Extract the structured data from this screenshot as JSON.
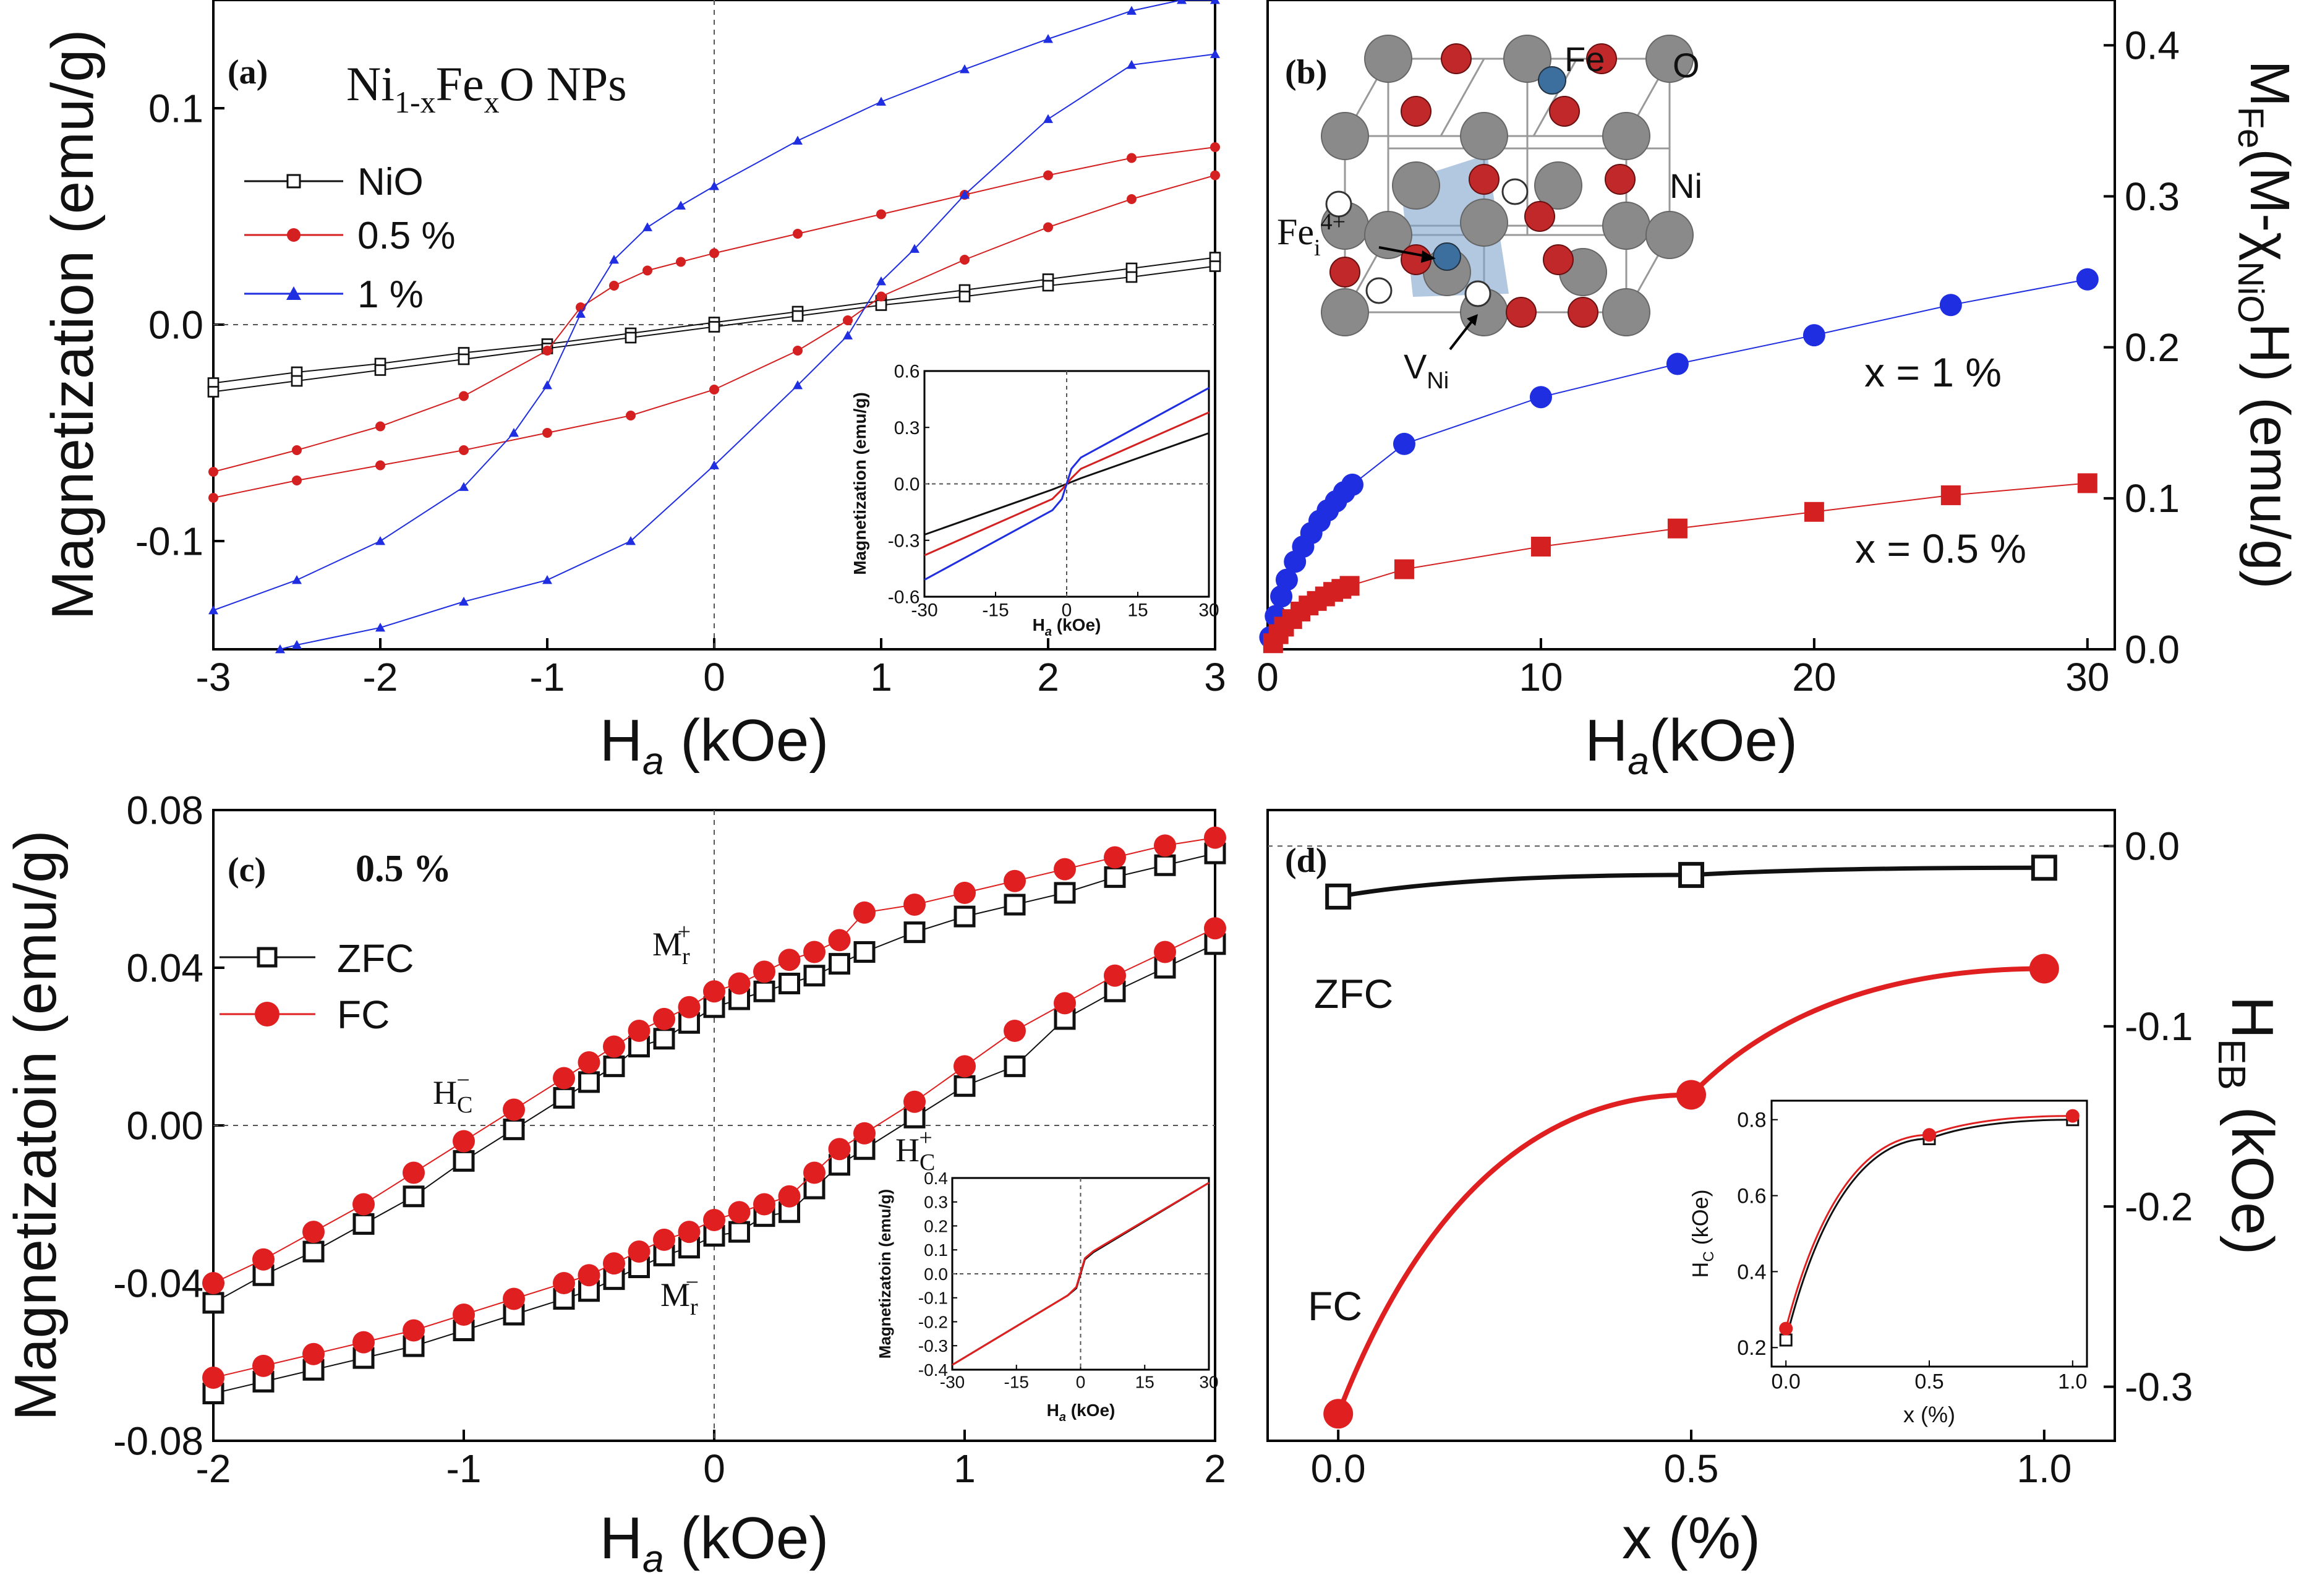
{
  "figure": {
    "panels": [
      "(a)",
      "(b)",
      "(c)",
      "(d)"
    ]
  },
  "chart_data": [
    {
      "panel": "(a)",
      "type": "line",
      "annotation": "Ni1-xFexO NPs",
      "annotation_parts": {
        "base": "Ni",
        "sub1": "1-x",
        "mid": "Fe",
        "sub2": "x",
        "end": "O NPs"
      },
      "xlabel": "Ha (kOe)",
      "xlabel_parts": {
        "base": "H",
        "sub": "a",
        "unit": " (kOe)"
      },
      "ylabel": "Magnetization (emu/g)",
      "xlim": [
        -3,
        3
      ],
      "ylim": [
        -0.15,
        0.15
      ],
      "xticks": [
        -3,
        -2,
        -1,
        0,
        1,
        2,
        3
      ],
      "yticks": [
        -0.1,
        0.0,
        0.1
      ],
      "ytick_labels": [
        "-0.1",
        "0.0",
        "0.1"
      ],
      "legend": [
        "NiO",
        "0.5 %",
        "1 %"
      ],
      "series": [
        {
          "name": "NiO",
          "color": "#111111",
          "marker": "open-square",
          "x_upper": [
            -3.0,
            -2.5,
            -2.0,
            -1.5,
            -1.0,
            -0.5,
            0.0,
            0.5,
            1.0,
            1.5,
            2.0,
            2.5,
            3.0
          ],
          "upper": [
            -0.027,
            -0.022,
            -0.018,
            -0.013,
            -0.009,
            -0.004,
            0.001,
            0.006,
            0.011,
            0.016,
            0.021,
            0.026,
            0.031
          ],
          "x_lower": [
            -3.0,
            -2.5,
            -2.0,
            -1.5,
            -1.0,
            -0.5,
            0.0,
            0.5,
            1.0,
            1.5,
            2.0,
            2.5,
            3.0
          ],
          "lower": [
            -0.031,
            -0.026,
            -0.021,
            -0.016,
            -0.011,
            -0.006,
            -0.001,
            0.004,
            0.009,
            0.013,
            0.018,
            0.022,
            0.027
          ]
        },
        {
          "name": "0.5 %",
          "color": "#d42020",
          "marker": "filled-circle",
          "x_upper": [
            -3.0,
            -2.5,
            -2.0,
            -1.5,
            -1.0,
            -0.8,
            -0.6,
            -0.4,
            -0.2,
            0.0,
            0.5,
            1.0,
            1.5,
            2.0,
            2.5,
            3.0
          ],
          "upper": [
            -0.068,
            -0.058,
            -0.047,
            -0.033,
            -0.012,
            0.008,
            0.018,
            0.025,
            0.029,
            0.033,
            0.042,
            0.051,
            0.06,
            0.069,
            0.077,
            0.082
          ],
          "x_lower": [
            -3.0,
            -2.5,
            -2.0,
            -1.5,
            -1.0,
            -0.5,
            0.0,
            0.5,
            0.8,
            1.0,
            1.5,
            2.0,
            2.5,
            3.0
          ],
          "lower": [
            -0.08,
            -0.072,
            -0.065,
            -0.058,
            -0.05,
            -0.042,
            -0.03,
            -0.012,
            0.002,
            0.013,
            0.03,
            0.045,
            0.058,
            0.069
          ]
        },
        {
          "name": "1 %",
          "color": "#1f2ee0",
          "marker": "filled-triangle",
          "x_upper": [
            -3.0,
            -2.5,
            -2.0,
            -1.5,
            -1.2,
            -1.0,
            -0.8,
            -0.6,
            -0.4,
            -0.2,
            0.0,
            0.5,
            1.0,
            1.5,
            2.0,
            2.5,
            2.8,
            3.0
          ],
          "upper": [
            -0.132,
            -0.118,
            -0.1,
            -0.075,
            -0.05,
            -0.028,
            0.005,
            0.03,
            0.045,
            0.055,
            0.064,
            0.085,
            0.103,
            0.118,
            0.132,
            0.145,
            0.15,
            0.15
          ],
          "x_lower": [
            -2.6,
            -2.5,
            -2.0,
            -1.5,
            -1.0,
            -0.5,
            0.0,
            0.5,
            0.8,
            1.0,
            1.2,
            1.5,
            2.0,
            2.5,
            3.0
          ],
          "lower": [
            -0.15,
            -0.148,
            -0.14,
            -0.128,
            -0.118,
            -0.1,
            -0.065,
            -0.028,
            -0.005,
            0.02,
            0.035,
            0.06,
            0.095,
            0.12,
            0.125
          ]
        }
      ],
      "inset": {
        "xlabel": "Ha (kOe)",
        "xlabel_parts": {
          "base": "H",
          "sub": "a",
          "unit": " (kOe)"
        },
        "ylabel": "Magnetization (emu/g)",
        "xlim": [
          -30,
          30
        ],
        "ylim": [
          -0.6,
          0.6
        ],
        "xticks": [
          -30,
          -15,
          0,
          15,
          30
        ],
        "yticks": [
          -0.6,
          -0.3,
          0.0,
          0.3,
          0.6
        ],
        "ytick_labels": [
          "-0.6",
          "-0.3",
          "0.0",
          "0.3",
          "0.6"
        ],
        "series": [
          {
            "name": "NiO",
            "color": "#111111",
            "x": [
              -30,
              -3,
              0,
              3,
              30
            ],
            "y": [
              -0.27,
              -0.03,
              0.0,
              0.03,
              0.27
            ]
          },
          {
            "name": "0.5 %",
            "color": "#d42020",
            "x": [
              -30,
              -3,
              -1,
              1,
              3,
              30
            ],
            "y": [
              -0.38,
              -0.08,
              -0.03,
              0.03,
              0.08,
              0.38
            ]
          },
          {
            "name": "1 %",
            "color": "#1f2ee0",
            "x": [
              -30,
              -3,
              -1,
              1,
              3,
              30
            ],
            "y": [
              -0.51,
              -0.14,
              -0.08,
              0.08,
              0.14,
              0.51
            ]
          }
        ]
      }
    },
    {
      "panel": "(b)",
      "type": "scatter",
      "xlabel": "Ha(kOe)",
      "xlabel_parts": {
        "base": "H",
        "sub": "a",
        "unit": "(kOe)"
      },
      "ylabel": "MFe(M-χNiOH) (emu/g)",
      "ylabel_parts": {
        "m": "M",
        "fe": "Fe",
        "open": "(M-χ",
        "nio": "NiO",
        "close": "H) (emu/g)"
      },
      "xlim": [
        0,
        31
      ],
      "ylim": [
        0,
        0.43
      ],
      "xticks": [
        0,
        10,
        20,
        30
      ],
      "yticks": [
        0.0,
        0.1,
        0.2,
        0.3,
        0.4
      ],
      "ytick_labels": [
        "0.0",
        "0.1",
        "0.2",
        "0.3",
        "0.4"
      ],
      "series": [
        {
          "name": "x = 1 %",
          "color": "#1f2ee0",
          "marker": "filled-circle",
          "x": [
            0.1,
            0.3,
            0.5,
            0.7,
            1.0,
            1.3,
            1.6,
            1.9,
            2.2,
            2.5,
            2.8,
            3.1,
            5,
            10,
            15,
            20,
            25,
            30
          ],
          "y": [
            0.008,
            0.022,
            0.035,
            0.046,
            0.058,
            0.068,
            0.077,
            0.085,
            0.092,
            0.098,
            0.104,
            0.109,
            0.136,
            0.167,
            0.189,
            0.208,
            0.228,
            0.245
          ]
        },
        {
          "name": "x = 0.5 %",
          "color": "#d42020",
          "marker": "filled-square",
          "x": [
            0.2,
            0.4,
            0.6,
            0.9,
            1.2,
            1.5,
            1.8,
            2.1,
            2.4,
            2.7,
            3.0,
            5,
            10,
            15,
            20,
            25,
            30
          ],
          "y": [
            0.004,
            0.01,
            0.015,
            0.02,
            0.025,
            0.029,
            0.032,
            0.035,
            0.038,
            0.04,
            0.042,
            0.053,
            0.068,
            0.08,
            0.091,
            0.102,
            0.11
          ]
        }
      ],
      "labels": [
        "x = 1 %",
        "x = 0.5 %"
      ],
      "crystal_labels": {
        "fe": "Fe",
        "o": "O",
        "ni": "Ni",
        "fei_base": "Fe",
        "fei_sub": "i",
        "fei_sup": "4+",
        "vni_base": "V",
        "vni_sub": "Ni"
      },
      "crystal_colors": {
        "ni": "#8a8a8a",
        "o": "#c0282a",
        "fe": "#3d6f9e",
        "vacancy": "#ffffff",
        "tetra": "#7fa3cc"
      }
    },
    {
      "panel": "(c)",
      "type": "scatter",
      "annotation": "0.5 %",
      "xlabel": "Ha (kOe)",
      "xlabel_parts": {
        "base": "H",
        "sub": "a",
        "unit": " (kOe)"
      },
      "ylabel": "Magnetizatoin (emu/g)",
      "xlim": [
        -2,
        2
      ],
      "ylim": [
        -0.08,
        0.08
      ],
      "xticks": [
        -2,
        -1,
        0,
        1,
        2
      ],
      "yticks": [
        -0.08,
        -0.04,
        0.0,
        0.04,
        0.08
      ],
      "ytick_labels": [
        "-0.08",
        "-0.04",
        "0.00",
        "0.04",
        "0.08"
      ],
      "legend": [
        "ZFC",
        "FC"
      ],
      "point_labels": {
        "mr_plus": {
          "base": "M",
          "sub": "r",
          "sup": "+"
        },
        "mr_minus": {
          "base": "M",
          "sub": "r",
          "sup": "−"
        },
        "hc_minus": {
          "base": "H",
          "sub": "C",
          "sup": "−"
        },
        "hc_plus": {
          "base": "H",
          "sub": "C",
          "sup": "+"
        }
      },
      "series": [
        {
          "name": "ZFC",
          "color": "#111111",
          "marker": "open-square",
          "x_upper": [
            -2.0,
            -1.8,
            -1.6,
            -1.4,
            -1.2,
            -1.0,
            -0.8,
            -0.6,
            -0.5,
            -0.4,
            -0.3,
            -0.2,
            -0.1,
            0.0,
            0.1,
            0.2,
            0.3,
            0.4,
            0.5,
            0.6,
            0.8,
            1.0,
            1.2,
            1.4,
            1.6,
            1.8,
            2.0
          ],
          "upper": [
            -0.045,
            -0.038,
            -0.032,
            -0.025,
            -0.018,
            -0.009,
            -0.001,
            0.007,
            0.011,
            0.015,
            0.02,
            0.022,
            0.026,
            0.03,
            0.032,
            0.034,
            0.036,
            0.038,
            0.041,
            0.044,
            0.049,
            0.053,
            0.056,
            0.059,
            0.063,
            0.066,
            0.069
          ],
          "x_lower": [
            -2.0,
            -1.8,
            -1.6,
            -1.4,
            -1.2,
            -1.0,
            -0.8,
            -0.6,
            -0.5,
            -0.4,
            -0.3,
            -0.2,
            -0.1,
            0.0,
            0.1,
            0.2,
            0.3,
            0.4,
            0.5,
            0.6,
            0.8,
            1.0,
            1.2,
            1.4,
            1.6,
            1.8,
            2.0
          ],
          "lower": [
            -0.068,
            -0.065,
            -0.062,
            -0.059,
            -0.056,
            -0.052,
            -0.048,
            -0.044,
            -0.042,
            -0.039,
            -0.036,
            -0.033,
            -0.031,
            -0.028,
            -0.027,
            -0.023,
            -0.022,
            -0.016,
            -0.01,
            -0.006,
            0.002,
            0.01,
            0.015,
            0.027,
            0.034,
            0.04,
            0.046
          ]
        },
        {
          "name": "FC",
          "color": "#e02020",
          "marker": "filled-circle",
          "x_upper": [
            -2.0,
            -1.8,
            -1.6,
            -1.4,
            -1.2,
            -1.0,
            -0.8,
            -0.6,
            -0.5,
            -0.4,
            -0.3,
            -0.2,
            -0.1,
            0.0,
            0.1,
            0.2,
            0.3,
            0.4,
            0.5,
            0.6,
            0.8,
            1.0,
            1.2,
            1.4,
            1.6,
            1.8,
            2.0
          ],
          "upper": [
            -0.04,
            -0.034,
            -0.027,
            -0.02,
            -0.012,
            -0.004,
            0.004,
            0.012,
            0.016,
            0.02,
            0.024,
            0.027,
            0.03,
            0.034,
            0.036,
            0.039,
            0.042,
            0.044,
            0.047,
            0.054,
            0.056,
            0.059,
            0.062,
            0.065,
            0.068,
            0.071,
            0.073
          ],
          "x_lower": [
            -2.0,
            -1.8,
            -1.6,
            -1.4,
            -1.2,
            -1.0,
            -0.8,
            -0.6,
            -0.5,
            -0.4,
            -0.3,
            -0.2,
            -0.1,
            0.0,
            0.1,
            0.2,
            0.3,
            0.4,
            0.5,
            0.6,
            0.8,
            1.0,
            1.2,
            1.4,
            1.6,
            1.8,
            2.0
          ],
          "lower": [
            -0.064,
            -0.061,
            -0.058,
            -0.055,
            -0.052,
            -0.048,
            -0.044,
            -0.04,
            -0.038,
            -0.035,
            -0.032,
            -0.029,
            -0.027,
            -0.024,
            -0.022,
            -0.02,
            -0.018,
            -0.012,
            -0.006,
            -0.002,
            0.006,
            0.015,
            0.024,
            0.031,
            0.038,
            0.044,
            0.05
          ]
        }
      ],
      "inset": {
        "xlabel": "Ha (kOe)",
        "xlabel_parts": {
          "base": "H",
          "sub": "a",
          "unit": " (kOe)"
        },
        "ylabel": "Magnetizatoin (emu/g)",
        "xlim": [
          -30,
          30
        ],
        "ylim": [
          -0.4,
          0.4
        ],
        "xticks": [
          -30,
          -15,
          0,
          15,
          30
        ],
        "yticks": [
          -0.4,
          -0.3,
          -0.2,
          -0.1,
          0.0,
          0.1,
          0.2,
          0.3,
          0.4
        ],
        "ytick_labels": [
          "-0.4",
          "-0.3",
          "-0.2",
          "-0.1",
          "0.0",
          "0.1",
          "0.2",
          "0.3",
          "0.4"
        ],
        "series": [
          {
            "name": "ZFC",
            "color": "#111111",
            "x": [
              -30,
              -3,
              -1,
              1,
              3,
              30
            ],
            "y": [
              -0.38,
              -0.09,
              -0.06,
              0.06,
              0.09,
              0.38
            ]
          },
          {
            "name": "FC",
            "color": "#e02020",
            "x": [
              -30,
              -3,
              -1,
              1,
              3,
              30
            ],
            "y": [
              -0.38,
              -0.09,
              -0.055,
              0.065,
              0.095,
              0.38
            ]
          }
        ]
      }
    },
    {
      "panel": "(d)",
      "type": "line",
      "xlabel": "x (%)",
      "ylabel": "HEB (kOe)",
      "ylabel_parts": {
        "base": "H",
        "sub": "EB",
        "unit": " (kOe)"
      },
      "xlim": [
        -0.1,
        1.1
      ],
      "ylim": [
        -0.33,
        0.02
      ],
      "xticks": [
        0.0,
        0.5,
        1.0
      ],
      "xtick_labels": [
        "0.0",
        "0.5",
        "1.0"
      ],
      "yticks": [
        0.0,
        -0.1,
        -0.2,
        -0.3
      ],
      "ytick_labels": [
        "0.0",
        "-0.1",
        "-0.2",
        "-0.3"
      ],
      "series": [
        {
          "name": "ZFC",
          "color": "#111111",
          "marker": "open-square",
          "x": [
            0.0,
            0.5,
            1.0
          ],
          "y": [
            -0.028,
            -0.016,
            -0.012
          ]
        },
        {
          "name": "FC",
          "color": "#e02020",
          "marker": "filled-circle",
          "x": [
            0.0,
            0.5,
            1.0
          ],
          "y": [
            -0.315,
            -0.138,
            -0.068
          ]
        }
      ],
      "labels": [
        "ZFC",
        "FC"
      ],
      "inset": {
        "xlabel": "x (%)",
        "ylabel": "HC (kOe)",
        "ylabel_parts": {
          "base": "H",
          "sub": "C",
          "unit": " (kOe)"
        },
        "xlim": [
          -0.05,
          1.05
        ],
        "ylim": [
          0.15,
          0.85
        ],
        "xticks": [
          0.0,
          0.5,
          1.0
        ],
        "xtick_labels": [
          "0.0",
          "0.5",
          "1.0"
        ],
        "yticks": [
          0.2,
          0.4,
          0.6,
          0.8
        ],
        "ytick_labels": [
          "0.2",
          "0.4",
          "0.6",
          "0.8"
        ],
        "series": [
          {
            "name": "ZFC",
            "color": "#111111",
            "marker": "open-square",
            "x": [
              0.0,
              0.5,
              1.0
            ],
            "y": [
              0.22,
              0.75,
              0.8
            ]
          },
          {
            "name": "FC",
            "color": "#e02020",
            "marker": "filled-circle",
            "x": [
              0.0,
              0.5,
              1.0
            ],
            "y": [
              0.25,
              0.76,
              0.81
            ]
          }
        ]
      }
    }
  ]
}
